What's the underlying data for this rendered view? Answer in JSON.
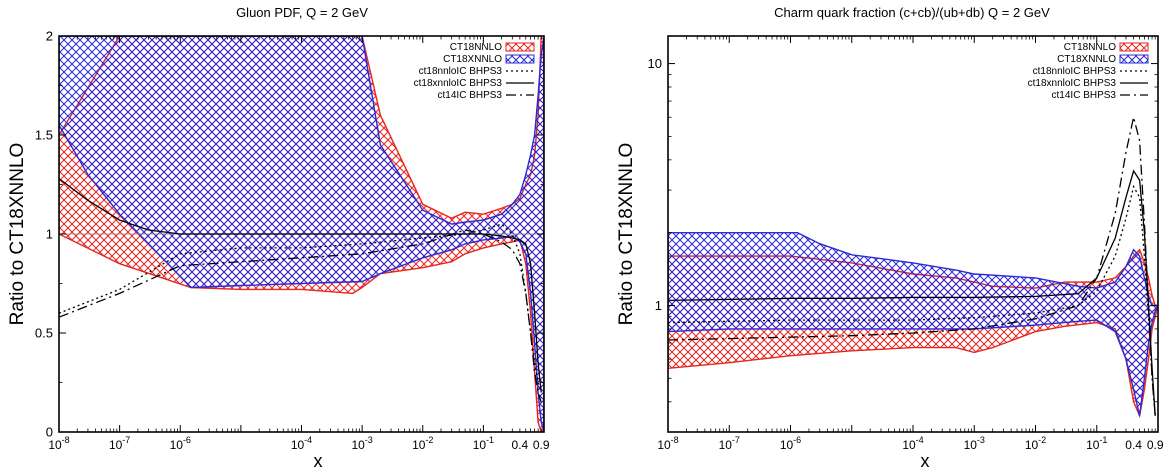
{
  "chart_data": [
    {
      "type": "area",
      "title": "Gluon PDF, Q = 2 GeV",
      "xlabel": "x",
      "ylabel": "Ratio to CT18XNNLO",
      "xscale": "log",
      "yscale": "linear",
      "xlim": [
        1e-08,
        1.0
      ],
      "ylim": [
        0,
        2
      ],
      "yticks": [
        0,
        0.5,
        1,
        1.5,
        2
      ],
      "ytick_labels": [
        "0",
        "0.5",
        "1",
        "1.5",
        "2"
      ],
      "xtick_labels": [
        {
          "x": 1e-08,
          "base": "10",
          "exp": "-8"
        },
        {
          "x": 1e-07,
          "base": "10",
          "exp": "-7"
        },
        {
          "x": 1e-06,
          "base": "10",
          "exp": "-6"
        },
        {
          "x": 0.0001,
          "base": "10",
          "exp": "-4"
        },
        {
          "x": 0.001,
          "base": "10",
          "exp": "-3"
        },
        {
          "x": 0.01,
          "base": "10",
          "exp": "-2"
        },
        {
          "x": 0.1,
          "base": "10",
          "exp": "-1"
        },
        {
          "x": 0.4,
          "base": "0.4",
          "exp": ""
        },
        {
          "x": 0.9,
          "base": "0.9",
          "exp": ""
        }
      ],
      "legend_position": "top-right",
      "bands": [
        {
          "name": "CT18NNLO",
          "color": "#e8251f",
          "fill": "#f06a5e",
          "x": [
            1e-08,
            1e-07,
            1.5e-06,
            1e-05,
            0.0001,
            0.0007,
            0.001,
            0.002,
            0.01,
            0.03,
            0.05,
            0.1,
            0.2,
            0.3,
            0.4,
            0.5,
            0.6,
            0.7,
            0.8,
            0.9,
            1.0
          ],
          "lower": [
            1.0,
            0.85,
            0.73,
            0.72,
            0.72,
            0.7,
            0.73,
            0.8,
            0.83,
            0.86,
            0.9,
            0.93,
            0.95,
            0.96,
            0.97,
            0.85,
            0.6,
            0.3,
            0.05,
            0.0,
            0.0
          ],
          "upper": [
            1.5,
            2.0,
            2.0,
            2.0,
            2.0,
            2.0,
            2.0,
            1.6,
            1.15,
            1.08,
            1.11,
            1.1,
            1.13,
            1.15,
            1.18,
            1.25,
            1.3,
            1.4,
            1.6,
            2.0,
            2.0
          ]
        },
        {
          "name": "CT18XNNLO",
          "color": "#2a2ad8",
          "fill": "#5a8cf0",
          "x": [
            1e-08,
            3e-08,
            1e-07,
            3e-07,
            1.5e-06,
            1e-05,
            0.0001,
            0.001,
            0.002,
            0.01,
            0.03,
            0.05,
            0.1,
            0.2,
            0.3,
            0.4,
            0.5,
            0.6,
            0.7,
            0.8,
            0.9,
            1.0
          ],
          "lower": [
            1.55,
            1.3,
            1.1,
            0.95,
            0.73,
            0.74,
            0.75,
            0.76,
            0.8,
            0.88,
            0.92,
            0.95,
            0.97,
            0.98,
            0.99,
            0.96,
            0.9,
            0.7,
            0.45,
            0.2,
            0.05,
            0.0
          ],
          "upper": [
            2.0,
            2.0,
            2.0,
            2.0,
            2.0,
            2.0,
            2.0,
            2.0,
            1.45,
            1.12,
            1.05,
            1.06,
            1.07,
            1.1,
            1.15,
            1.2,
            1.3,
            1.4,
            1.5,
            1.7,
            1.9,
            2.0
          ]
        }
      ],
      "series": [
        {
          "name": "ct18nnloIC BHPS3",
          "style": "dotted",
          "color": "#000000",
          "x": [
            1e-08,
            1e-07,
            1e-06,
            1e-05,
            0.0001,
            0.001,
            0.01,
            0.05,
            0.1,
            0.2,
            0.3,
            0.4,
            0.5,
            0.6,
            0.7,
            0.8,
            0.9
          ],
          "y": [
            0.6,
            0.72,
            0.9,
            0.93,
            0.93,
            0.95,
            0.98,
            1.0,
            1.02,
            1.05,
            1.0,
            0.9,
            0.7,
            0.5,
            0.35,
            0.25,
            0.2
          ]
        },
        {
          "name": "ct18xnnloIC BHPS3",
          "style": "solid",
          "color": "#000000",
          "x": [
            1e-08,
            3e-08,
            1e-07,
            3e-07,
            1e-06,
            1e-05,
            0.0001,
            0.001,
            0.01,
            0.1,
            0.2,
            0.3,
            0.4,
            0.5,
            0.6,
            0.7,
            0.8,
            0.9
          ],
          "y": [
            1.28,
            1.17,
            1.07,
            1.02,
            1.0,
            1.0,
            1.0,
            1.0,
            1.0,
            1.0,
            0.99,
            0.98,
            0.97,
            0.95,
            0.85,
            0.6,
            0.35,
            0.2
          ]
        },
        {
          "name": "ct14IC BHPS3",
          "style": "dashdot",
          "color": "#000000",
          "x": [
            1e-08,
            1e-07,
            1e-06,
            1e-05,
            0.0001,
            0.001,
            0.01,
            0.05,
            0.1,
            0.2,
            0.3,
            0.4,
            0.5,
            0.6,
            0.7,
            0.8,
            0.9
          ],
          "y": [
            0.58,
            0.7,
            0.84,
            0.86,
            0.88,
            0.9,
            0.95,
            1.02,
            1.0,
            0.96,
            0.92,
            0.85,
            0.7,
            0.5,
            0.3,
            0.2,
            0.15
          ]
        }
      ],
      "reference_line": 1
    },
    {
      "type": "area",
      "title": "Charm quark fraction (c+cb)/(ub+db)   Q = 2 GeV",
      "xlabel": "x",
      "ylabel": "Ratio to CT18XNNLO",
      "xscale": "log",
      "yscale": "log",
      "xlim": [
        1e-08,
        1.0
      ],
      "ylim": [
        0.3,
        13
      ],
      "yticks": [
        1,
        10
      ],
      "ytick_labels": [
        "1",
        "10"
      ],
      "xtick_labels": [
        {
          "x": 1e-08,
          "base": "10",
          "exp": "-8"
        },
        {
          "x": 1e-07,
          "base": "10",
          "exp": "-7"
        },
        {
          "x": 1e-06,
          "base": "10",
          "exp": "-6"
        },
        {
          "x": 0.0001,
          "base": "10",
          "exp": "-4"
        },
        {
          "x": 0.001,
          "base": "10",
          "exp": "-3"
        },
        {
          "x": 0.01,
          "base": "10",
          "exp": "-2"
        },
        {
          "x": 0.1,
          "base": "10",
          "exp": "-1"
        },
        {
          "x": 0.4,
          "base": "0.4",
          "exp": ""
        },
        {
          "x": 0.9,
          "base": "0.9",
          "exp": ""
        }
      ],
      "legend_position": "top-right",
      "bands": [
        {
          "name": "CT18NNLO",
          "color": "#e8251f",
          "fill": "#f06a5e",
          "x": [
            1e-08,
            1e-07,
            1e-06,
            1e-05,
            0.0001,
            0.0005,
            0.001,
            0.002,
            0.01,
            0.03,
            0.1,
            0.2,
            0.3,
            0.4,
            0.5,
            0.6,
            0.7,
            0.8,
            0.9,
            1.0
          ],
          "lower": [
            0.55,
            0.58,
            0.62,
            0.65,
            0.67,
            0.67,
            0.64,
            0.67,
            0.78,
            0.82,
            0.85,
            0.8,
            0.6,
            0.4,
            0.35,
            0.45,
            0.6,
            0.8,
            0.9,
            1.0
          ],
          "upper": [
            1.6,
            1.6,
            1.6,
            1.5,
            1.35,
            1.3,
            1.25,
            1.2,
            1.18,
            1.25,
            1.25,
            1.3,
            1.45,
            1.6,
            1.7,
            1.5,
            1.3,
            1.1,
            1.0,
            1.0
          ]
        },
        {
          "name": "CT18XNNLO",
          "color": "#2a2ad8",
          "fill": "#5a8cf0",
          "x": [
            1e-08,
            1e-07,
            1.3e-06,
            3e-06,
            1e-05,
            0.0001,
            0.0005,
            0.001,
            0.01,
            0.05,
            0.1,
            0.2,
            0.3,
            0.4,
            0.5,
            0.6,
            0.7,
            0.8,
            0.9,
            1.0
          ],
          "lower": [
            0.78,
            0.8,
            0.8,
            0.8,
            0.8,
            0.8,
            0.8,
            0.8,
            0.83,
            0.86,
            0.87,
            0.78,
            0.6,
            0.45,
            0.35,
            0.5,
            0.7,
            0.85,
            0.95,
            1.0
          ],
          "upper": [
            2.0,
            2.0,
            2.0,
            1.8,
            1.62,
            1.5,
            1.4,
            1.35,
            1.3,
            1.2,
            1.18,
            1.25,
            1.45,
            1.7,
            1.6,
            1.3,
            1.1,
            1.0,
            1.0,
            1.0
          ]
        }
      ],
      "series": [
        {
          "name": "ct18nnloIC BHPS3",
          "style": "dotted",
          "color": "#000000",
          "x": [
            1e-08,
            1e-07,
            1e-06,
            1e-05,
            0.0001,
            0.001,
            0.01,
            0.05,
            0.1,
            0.2,
            0.3,
            0.4,
            0.5,
            0.6,
            0.7,
            0.8,
            0.9
          ],
          "y": [
            0.85,
            0.86,
            0.87,
            0.87,
            0.87,
            0.89,
            0.93,
            1.0,
            1.15,
            1.6,
            2.3,
            3.1,
            2.8,
            1.6,
            0.9,
            0.5,
            0.35
          ]
        },
        {
          "name": "ct18xnnloIC BHPS3",
          "style": "solid",
          "color": "#000000",
          "x": [
            1e-08,
            1e-07,
            1e-06,
            1e-05,
            0.0001,
            0.001,
            0.01,
            0.05,
            0.1,
            0.2,
            0.3,
            0.4,
            0.5,
            0.6,
            0.7,
            0.8,
            0.9
          ],
          "y": [
            1.05,
            1.06,
            1.07,
            1.07,
            1.08,
            1.08,
            1.09,
            1.12,
            1.3,
            1.9,
            2.8,
            3.6,
            3.3,
            2.0,
            1.0,
            0.55,
            0.35
          ]
        },
        {
          "name": "ct14IC BHPS3",
          "style": "dashdot",
          "color": "#000000",
          "x": [
            1e-08,
            1e-07,
            1e-06,
            1e-05,
            0.0001,
            0.001,
            0.01,
            0.05,
            0.1,
            0.2,
            0.3,
            0.4,
            0.5,
            0.6,
            0.7,
            0.8,
            0.9
          ],
          "y": [
            0.72,
            0.73,
            0.74,
            0.75,
            0.77,
            0.8,
            0.88,
            1.0,
            1.3,
            2.4,
            4.3,
            6.0,
            4.8,
            2.2,
            1.0,
            0.5,
            0.35
          ]
        }
      ]
    }
  ]
}
